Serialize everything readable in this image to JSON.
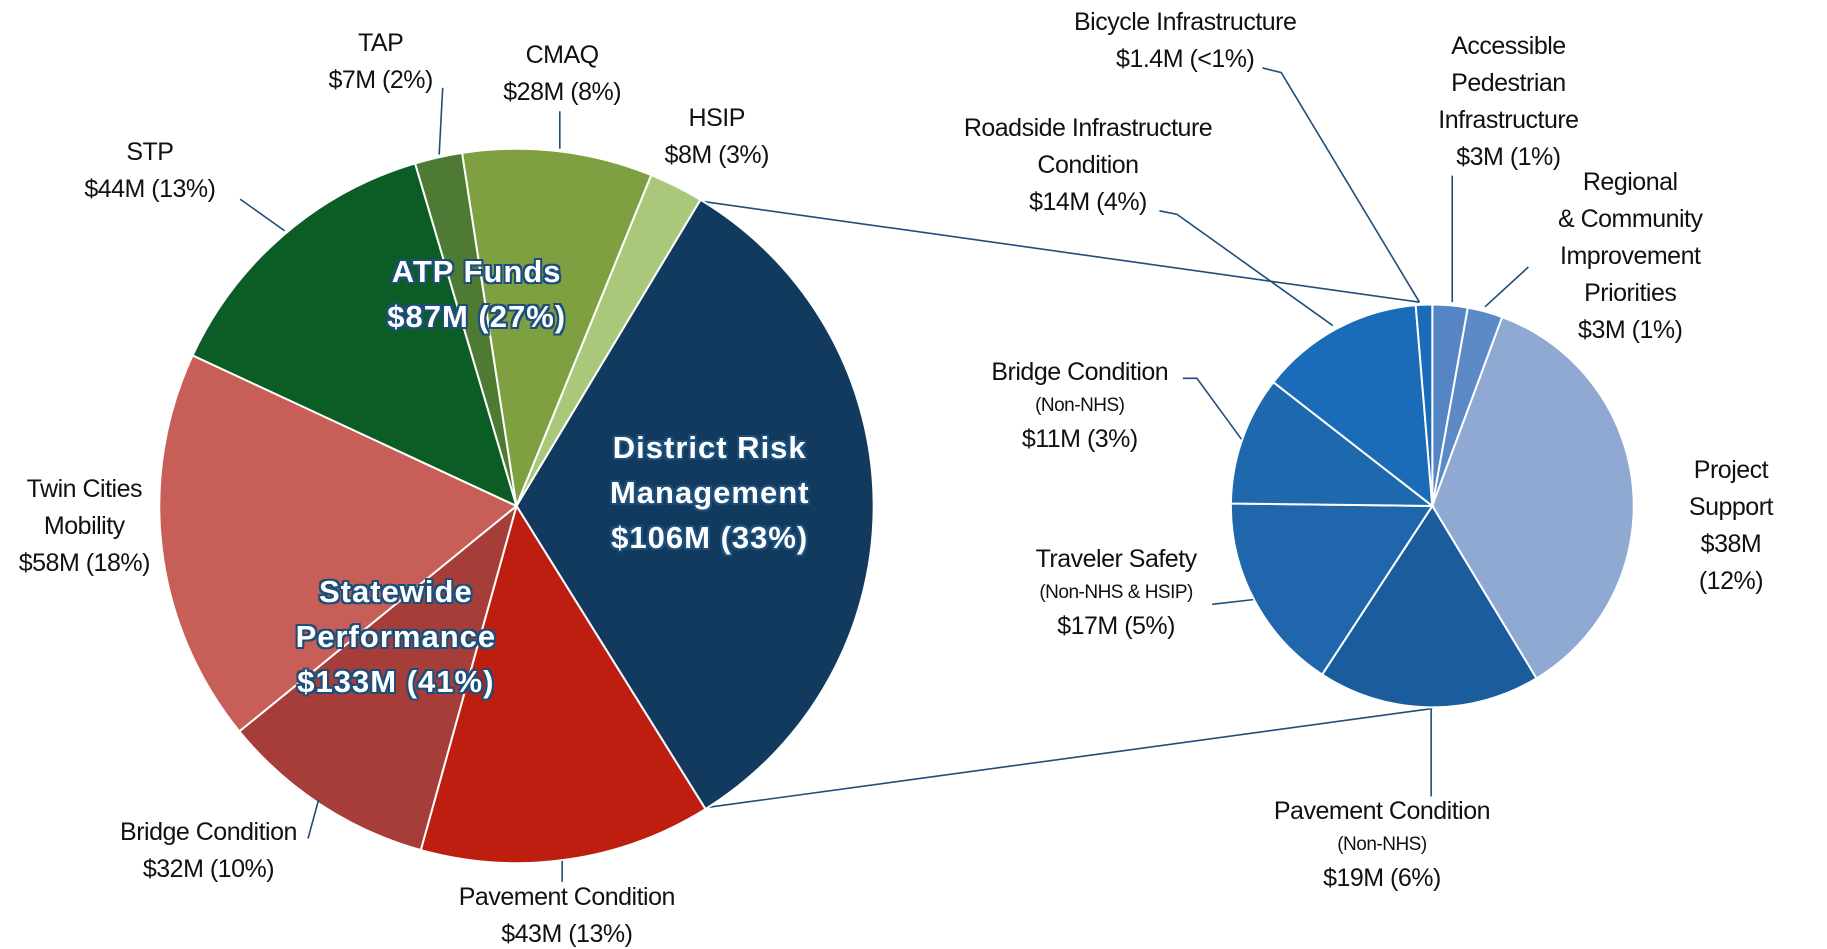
{
  "chart_data": [
    {
      "type": "pie",
      "categories": [
        "District Risk\nManagement",
        "Pavement Condition",
        "Bridge Condition",
        "Twin Cities\nMobility",
        "STP",
        "TAP",
        "CMAQ",
        "HSIP"
      ],
      "values": [
        106,
        43,
        32,
        58,
        44,
        7,
        28,
        8
      ],
      "value_labels": [
        "$106M (33%)",
        "$43M (13%)",
        "$32M (10%)",
        "$58M (18%)",
        "$44M (13%)",
        "$7M (2%)",
        "$28M (8%)",
        "$8M (3%)"
      ],
      "colors": [
        "#123a5e",
        "#be1e10",
        "#a63d38",
        "#c85e58",
        "#0c5c26",
        "#4e7a33",
        "#7fa040",
        "#a9c87a"
      ],
      "annotations": [
        "ATP Funds\n$87M (27%)",
        "Statewide\nPerformance\n$133M (41%)"
      ]
    },
    {
      "type": "pie",
      "categories": [
        "Accessible\nPedestrian\nInfrastructure",
        "Regional\n& Community\nImprovement\nPriorities",
        "Project Support",
        "Pavement Condition",
        "Traveler Safety",
        "Bridge Condition",
        "Roadside Infrastructure\nCondition",
        "Bicycle Infrastructure"
      ],
      "notes": [
        null,
        null,
        null,
        "(Non-NHS)",
        "(Non-NHS & HSIP)",
        "(Non-NHS)",
        null,
        null
      ],
      "values": [
        3,
        3,
        38,
        19,
        17,
        11,
        14,
        1.4
      ],
      "value_labels": [
        "$3M (1%)",
        "$3M (1%)",
        "$38M (12%)",
        "$19M (6%)",
        "$17M (5%)",
        "$11M (3%)",
        "$14M (4%)",
        "$1.4M (<1%)"
      ],
      "colors": [
        "#5585c4",
        "#5b8ac6",
        "#8fa9d2",
        "#1b5c9c",
        "#1f66ac",
        "#1e69ad",
        "#1b6cb8",
        "#1a6cba"
      ]
    }
  ]
}
